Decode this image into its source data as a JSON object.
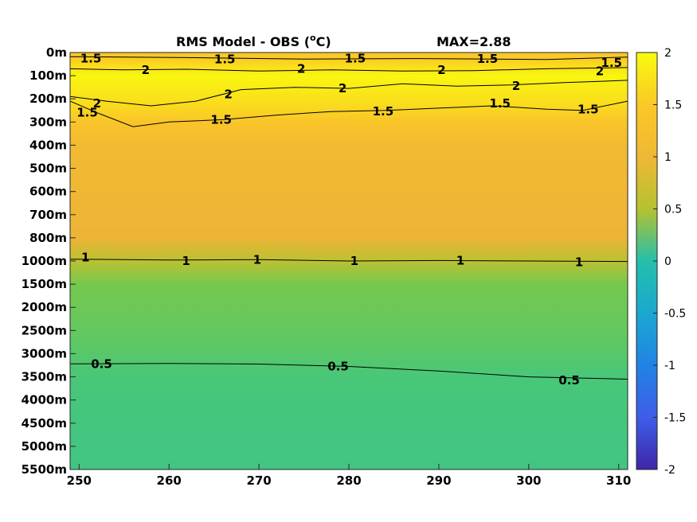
{
  "chart_data": {
    "type": "heatmap",
    "title": "RMS Model - OBS (",
    "title_unit": "o",
    "title_unit_end": "C)",
    "max_label": "MAX=2.88",
    "x_ticks": [
      250,
      260,
      270,
      280,
      290,
      300,
      310
    ],
    "x_range": [
      249,
      311
    ],
    "y_tick_labels": [
      "0m",
      "100m",
      "200m",
      "300m",
      "400m",
      "500m",
      "600m",
      "700m",
      "800m",
      "1000m",
      "1500m",
      "2000m",
      "2500m",
      "3000m",
      "3500m",
      "4000m",
      "4500m",
      "5000m",
      "5500m"
    ],
    "colorbar": {
      "range": [
        -2,
        2
      ],
      "ticks": [
        2,
        1.5,
        1,
        0.5,
        0,
        -0.5,
        -1,
        -1.5,
        -2
      ],
      "tick_labels": [
        "2",
        "1.5",
        "1",
        "0.5",
        "0",
        "-0.5",
        "-1",
        "-1.5",
        "-2"
      ],
      "colormap": "parula"
    },
    "depth_profile": [
      {
        "level": 0.0,
        "value": 1.45
      },
      {
        "level": 0.3,
        "value": 1.55
      },
      {
        "level": 1.0,
        "value": 1.95
      },
      {
        "level": 2.0,
        "value": 1.75
      },
      {
        "level": 3.0,
        "value": 1.45
      },
      {
        "level": 4.0,
        "value": 1.3
      },
      {
        "level": 6.0,
        "value": 1.26
      },
      {
        "level": 8.0,
        "value": 1.22
      },
      {
        "level": 9.0,
        "value": 1.02
      },
      {
        "level": 10.0,
        "value": 0.8
      },
      {
        "level": 11.0,
        "value": 0.74
      },
      {
        "level": 12.0,
        "value": 0.68
      },
      {
        "level": 13.0,
        "value": 0.6
      },
      {
        "level": 14.0,
        "value": 0.5
      },
      {
        "level": 15.0,
        "value": 0.46
      },
      {
        "level": 16.0,
        "value": 0.43
      },
      {
        "level": 17.0,
        "value": 0.41
      },
      {
        "level": 18.0,
        "value": 0.4
      }
    ],
    "contour_labels": [
      {
        "text": "1.5",
        "x": 251.3,
        "level": 0.25
      },
      {
        "text": "1.5",
        "x": 266.2,
        "level": 0.3
      },
      {
        "text": "1.5",
        "x": 280.7,
        "level": 0.25
      },
      {
        "text": "1.5",
        "x": 295.4,
        "level": 0.27
      },
      {
        "text": "1.5",
        "x": 309.2,
        "level": 0.45
      },
      {
        "text": "2",
        "x": 257.4,
        "level": 0.75
      },
      {
        "text": "2",
        "x": 274.7,
        "level": 0.7
      },
      {
        "text": "2",
        "x": 290.3,
        "level": 0.75
      },
      {
        "text": "2",
        "x": 307.9,
        "level": 0.8
      },
      {
        "text": "2",
        "x": 279.3,
        "level": 1.55
      },
      {
        "text": "2",
        "x": 298.6,
        "level": 1.45
      },
      {
        "text": "2",
        "x": 266.6,
        "level": 1.8
      },
      {
        "text": "2",
        "x": 252.0,
        "level": 2.2
      },
      {
        "text": "1.5",
        "x": 250.9,
        "level": 2.6
      },
      {
        "text": "1.5",
        "x": 265.8,
        "level": 2.9
      },
      {
        "text": "1.5",
        "x": 283.8,
        "level": 2.55
      },
      {
        "text": "1.5",
        "x": 296.8,
        "level": 2.2
      },
      {
        "text": "1.5",
        "x": 306.6,
        "level": 2.45
      },
      {
        "text": "1",
        "x": 250.7,
        "level": 8.85
      },
      {
        "text": "1",
        "x": 261.9,
        "level": 9.0
      },
      {
        "text": "1",
        "x": 269.8,
        "level": 8.95
      },
      {
        "text": "1",
        "x": 280.6,
        "level": 9.0
      },
      {
        "text": "1",
        "x": 292.4,
        "level": 8.98
      },
      {
        "text": "1",
        "x": 305.6,
        "level": 9.05
      },
      {
        "text": "0.5",
        "x": 252.5,
        "level": 13.45
      },
      {
        "text": "0.5",
        "x": 278.8,
        "level": 13.55
      },
      {
        "text": "0.5",
        "x": 304.5,
        "level": 14.15
      }
    ],
    "contour_lines": [
      {
        "value": 1.5,
        "points": [
          [
            249,
            0.18
          ],
          [
            262,
            0.22
          ],
          [
            275,
            0.28
          ],
          [
            288,
            0.26
          ],
          [
            302,
            0.3
          ],
          [
            311,
            0.2
          ]
        ]
      },
      {
        "value": 2,
        "points": [
          [
            249,
            0.7
          ],
          [
            255,
            0.75
          ],
          [
            262,
            0.72
          ],
          [
            270,
            0.8
          ],
          [
            278,
            0.75
          ],
          [
            286,
            0.8
          ],
          [
            294,
            0.78
          ],
          [
            302,
            0.7
          ],
          [
            311,
            0.65
          ]
        ]
      },
      {
        "value": 2,
        "points": [
          [
            249,
            1.9
          ],
          [
            253,
            2.1
          ],
          [
            258,
            2.3
          ],
          [
            263,
            2.1
          ],
          [
            268,
            1.6
          ],
          [
            274,
            1.5
          ],
          [
            280,
            1.55
          ],
          [
            286,
            1.35
          ],
          [
            292,
            1.45
          ],
          [
            298,
            1.4
          ],
          [
            304,
            1.3
          ],
          [
            311,
            1.2
          ]
        ]
      },
      {
        "value": 1.5,
        "points": [
          [
            249,
            2.1
          ],
          [
            252,
            2.6
          ],
          [
            256,
            3.2
          ],
          [
            260,
            3.0
          ],
          [
            266,
            2.9
          ],
          [
            272,
            2.7
          ],
          [
            278,
            2.55
          ],
          [
            284,
            2.5
          ],
          [
            290,
            2.4
          ],
          [
            296,
            2.3
          ],
          [
            302,
            2.45
          ],
          [
            306,
            2.5
          ],
          [
            311,
            2.1
          ]
        ]
      },
      {
        "value": 1,
        "points": [
          [
            249,
            8.92
          ],
          [
            260,
            8.96
          ],
          [
            270,
            8.94
          ],
          [
            280,
            9.0
          ],
          [
            290,
            8.98
          ],
          [
            300,
            9.0
          ],
          [
            311,
            9.02
          ]
        ]
      },
      {
        "value": 0.5,
        "points": [
          [
            249,
            13.44
          ],
          [
            260,
            13.42
          ],
          [
            270,
            13.45
          ],
          [
            280,
            13.55
          ],
          [
            290,
            13.75
          ],
          [
            300,
            14.0
          ],
          [
            311,
            14.1
          ]
        ]
      }
    ]
  }
}
